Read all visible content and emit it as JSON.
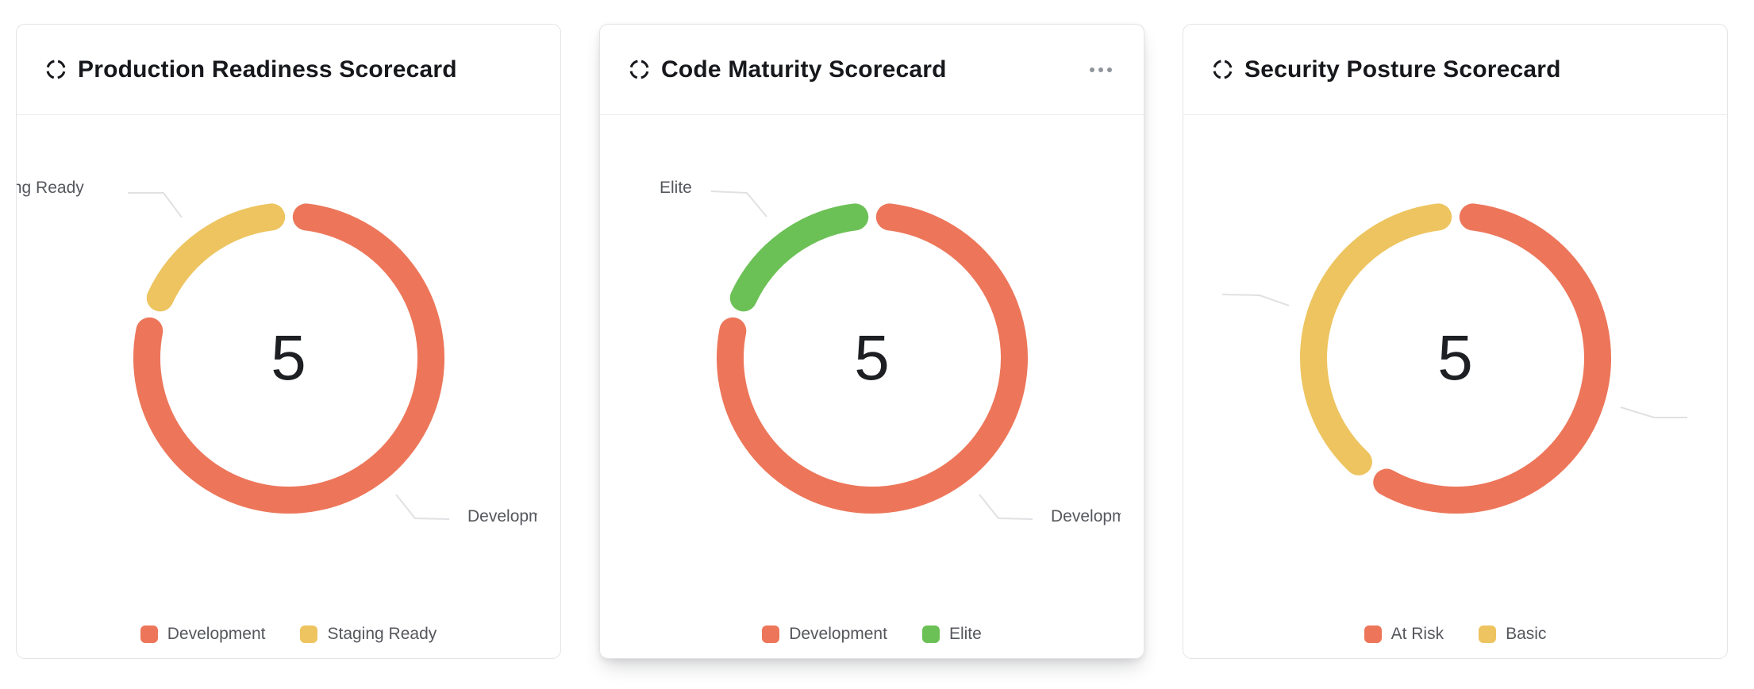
{
  "cards": [
    {
      "title": "Production Readiness Scorecard"
    },
    {
      "title": "Code Maturity Scorecard",
      "menu_icon": "ellipsis"
    },
    {
      "title": "Security Posture Scorecard"
    }
  ],
  "chart_data": [
    {
      "type": "pie",
      "variant": "donut",
      "title": "Production Readiness Scorecard",
      "center_value": "5",
      "total": 5,
      "start_angle_deg": 0,
      "direction": "clockwise",
      "legend_position": "bottom",
      "slices": [
        {
          "label": "Development",
          "value": 4,
          "color": "#ED765A"
        },
        {
          "label": "Staging Ready",
          "value": 1,
          "color": "#EDC45F"
        }
      ]
    },
    {
      "type": "pie",
      "variant": "donut",
      "title": "Code Maturity Scorecard",
      "center_value": "5",
      "total": 5,
      "start_angle_deg": 0,
      "direction": "clockwise",
      "legend_position": "bottom",
      "slices": [
        {
          "label": "Development",
          "value": 4,
          "color": "#ED765A"
        },
        {
          "label": "Elite",
          "value": 1,
          "color": "#6CC156"
        }
      ]
    },
    {
      "type": "pie",
      "variant": "donut",
      "title": "Security Posture Scorecard",
      "center_value": "5",
      "total": 5,
      "start_angle_deg": 0,
      "direction": "clockwise",
      "legend_position": "bottom",
      "slices": [
        {
          "label": "At Risk",
          "value": 3,
          "color": "#ED765A"
        },
        {
          "label": "Basic",
          "value": 2,
          "color": "#EDC45F"
        }
      ]
    }
  ]
}
